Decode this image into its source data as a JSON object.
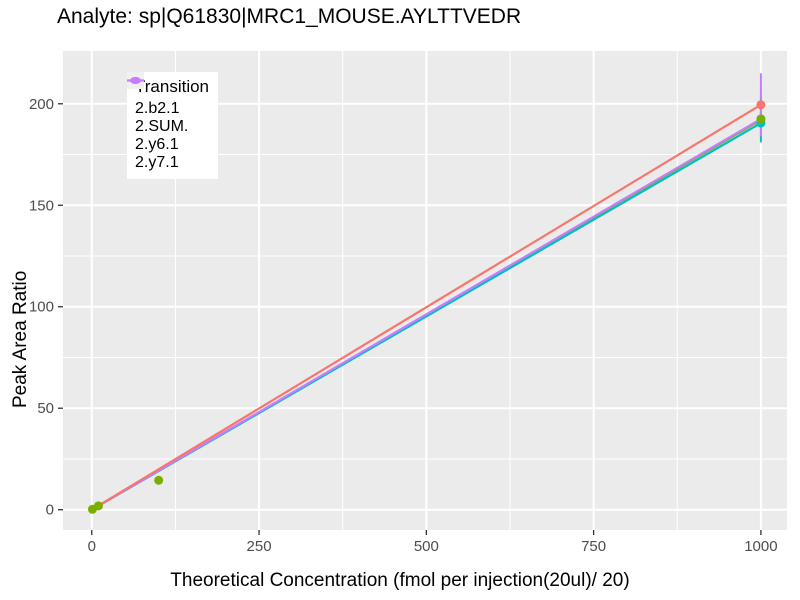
{
  "chart_data": {
    "type": "line",
    "title": "Analyte: sp|Q61830|MRC1_MOUSE.AYLTTVEDR",
    "xlabel": "Theoretical Concentration (fmol per injection(20ul)/ 20)",
    "ylabel": "Peak Area Ratio",
    "xlim": [
      -43,
      1039
    ],
    "ylim": [
      -10,
      226
    ],
    "x_ticks": [
      0,
      250,
      500,
      750,
      1000
    ],
    "y_ticks": [
      0,
      50,
      100,
      150,
      200
    ],
    "x_minor_ticks": [
      125,
      375,
      625,
      875
    ],
    "y_minor_ticks": [
      25,
      75,
      125,
      175
    ],
    "grid": "on",
    "panel_background": "#EBEBEB",
    "gridline_color": "#FFFFFF",
    "tick_color": "#333333",
    "tick_label_color": "#4D4D4D",
    "legend": {
      "title": "Transition",
      "position": "inset top-left"
    },
    "series": [
      {
        "name": "2.b2.1",
        "color": "#F8766D",
        "line": {
          "x1": 1,
          "y1": 0.2,
          "x2": 1000,
          "y2": 199.5
        },
        "points": [
          {
            "x": 1000,
            "y": 199.5
          }
        ],
        "error_bars": [
          {
            "x": 1000,
            "ymin": 195,
            "ymax": 204.5
          }
        ]
      },
      {
        "name": "2.SUM.",
        "color": "#7CAE00",
        "line": {
          "x1": 1,
          "y1": 0.2,
          "x2": 1000,
          "y2": 192
        },
        "points": [
          {
            "x": 1,
            "y": 0.2
          },
          {
            "x": 10,
            "y": 1.9
          },
          {
            "x": 100,
            "y": 14.5
          },
          {
            "x": 1000,
            "y": 192.5
          }
        ],
        "error_bars": [
          {
            "x": 1000,
            "ymin": 189,
            "ymax": 196
          }
        ]
      },
      {
        "name": "2.y6.1",
        "color": "#00BFC4",
        "line": {
          "x1": 1,
          "y1": 0.2,
          "x2": 1000,
          "y2": 190.5
        },
        "points": [
          {
            "x": 1000,
            "y": 190.5
          }
        ],
        "error_bars": [
          {
            "x": 1000,
            "ymin": 181,
            "ymax": 196
          }
        ]
      },
      {
        "name": "2.y7.1",
        "color": "#C77CFF",
        "line": {
          "x1": 1,
          "y1": 0.2,
          "x2": 1000,
          "y2": 192.5
        },
        "points": [
          {
            "x": 1000,
            "y": 192.5
          }
        ],
        "error_bars": [
          {
            "x": 1000,
            "ymin": 184,
            "ymax": 215
          }
        ]
      }
    ]
  }
}
